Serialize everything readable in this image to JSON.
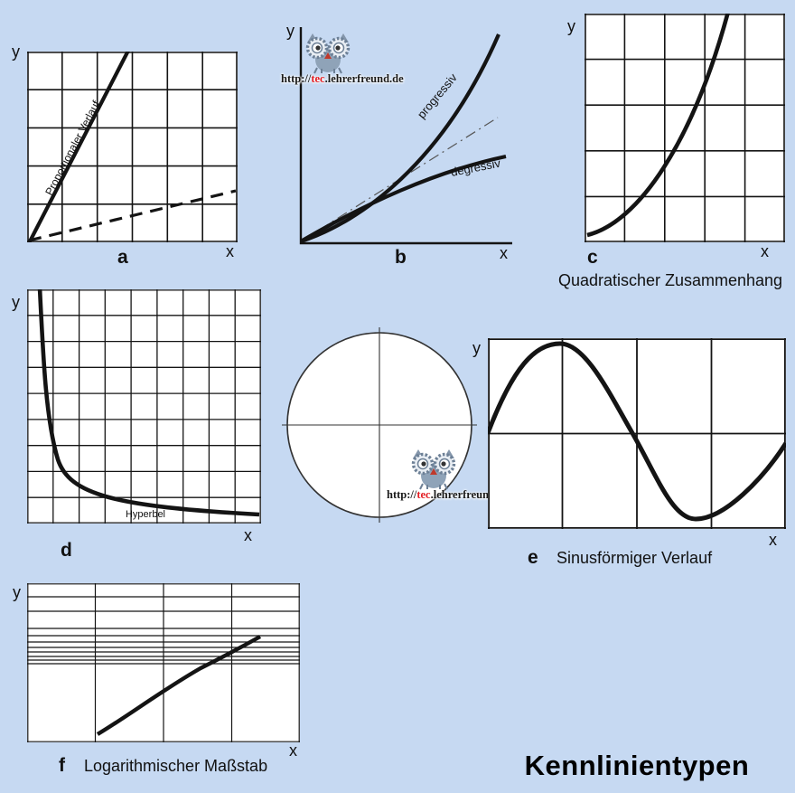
{
  "title": "Kennlinientypen",
  "watermark": {
    "prefix": "http://",
    "brand": "tec",
    "suffix": ".lehrerfreund.de"
  },
  "panels": {
    "a": {
      "label": "a",
      "axis_y": "y",
      "axis_x": "x",
      "curve_label": "Proportionaler Verlauf"
    },
    "b": {
      "label": "b",
      "axis_y": "y",
      "axis_x": "x",
      "label_progressive": "progressiv",
      "label_degressive": "degressiv"
    },
    "c": {
      "label": "c",
      "axis_y": "y",
      "axis_x": "x",
      "caption": "Quadratischer Zusammenhang"
    },
    "d": {
      "label": "d",
      "axis_y": "y",
      "axis_x": "x",
      "curve_label": "Hyperbel"
    },
    "e": {
      "label": "e",
      "axis_y": "y",
      "axis_x": "x",
      "caption": "Sinusförmiger Verlauf"
    },
    "f": {
      "label": "f",
      "axis_y": "y",
      "axis_x": "x",
      "caption": "Logarithmischer Maßstab"
    }
  },
  "colors": {
    "background": "#c6d9f2",
    "ink": "#141414",
    "brand_red": "#e31e24"
  }
}
